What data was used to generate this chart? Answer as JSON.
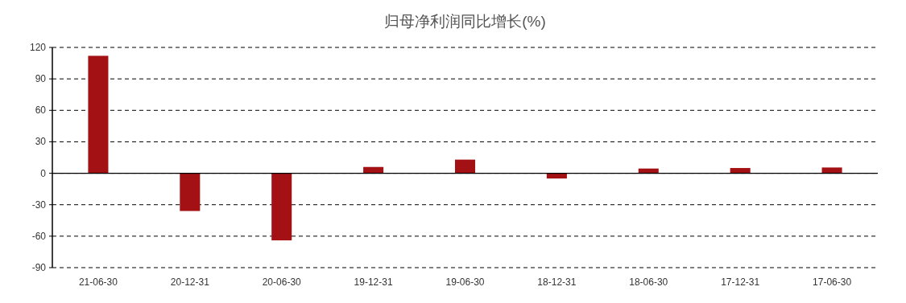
{
  "chart_data": {
    "type": "bar",
    "title": "归母净利润同比增长(%)",
    "categories": [
      "21-06-30",
      "20-12-31",
      "20-06-30",
      "19-12-31",
      "19-06-30",
      "18-12-31",
      "18-06-30",
      "17-12-31",
      "17-06-30"
    ],
    "values": [
      112,
      -36,
      -64,
      6,
      13,
      -5,
      4.5,
      5,
      5.5
    ],
    "color": "#a31114",
    "ylim": [
      -90,
      120
    ],
    "yticks": [
      -90,
      -60,
      -30,
      0,
      30,
      60,
      90,
      120
    ],
    "grid": "y"
  }
}
